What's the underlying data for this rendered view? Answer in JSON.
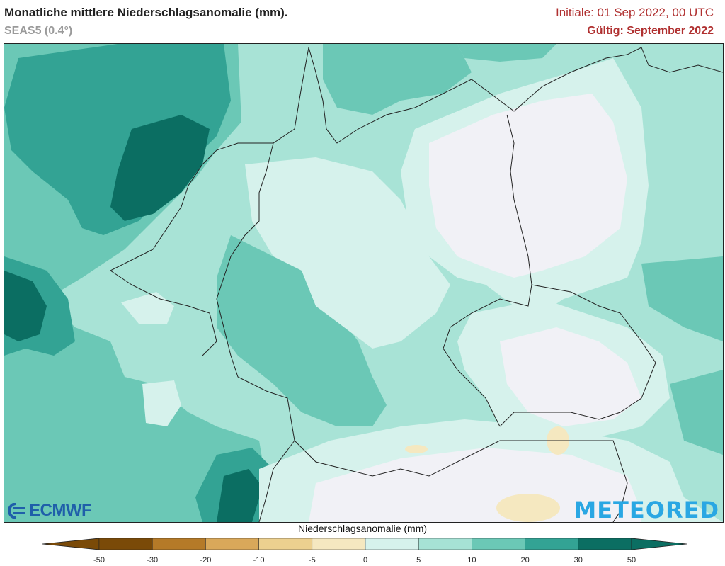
{
  "header": {
    "title": "Monatliche mittlere Niederschlagsanomalie (mm).",
    "subtitle": "SEAS5 (0.4°)",
    "initial": "Initiale: 01 Sep 2022, 00 UTC",
    "valid": "Gültig: September 2022"
  },
  "logos": {
    "ecmwf": "ECMWF",
    "meteored": "METEORED"
  },
  "colorbar": {
    "title": "Niederschlagsanomalie (mm)",
    "ticks": [
      "-50",
      "-30",
      "-20",
      "-10",
      "-5",
      "0",
      "5",
      "10",
      "20",
      "30",
      "50"
    ],
    "colors": [
      "#7a4a08",
      "#b57a28",
      "#d9a85a",
      "#ecd08f",
      "#f5e8c0",
      "#f1f1f6",
      "#d6f2ec",
      "#a6e2d5",
      "#6bc8b6",
      "#33a394",
      "#0b6e62"
    ]
  }
}
